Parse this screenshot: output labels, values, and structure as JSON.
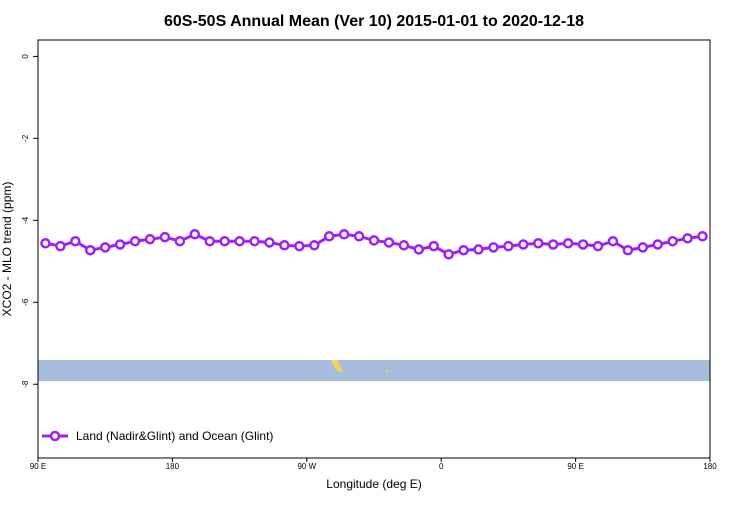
{
  "chart_data": {
    "type": "line",
    "title": "60S-50S Annual Mean (Ver 10)   2015-01-01 to 2020-12-18",
    "x_label": "Longitude (deg E)",
    "y_label": "XCO2 - MLO trend (ppm)",
    "x": [
      95,
      105,
      115,
      125,
      135,
      145,
      155,
      165,
      175,
      185,
      195,
      205,
      215,
      225,
      235,
      245,
      255,
      265,
      275,
      285,
      295,
      305,
      315,
      325,
      335,
      345,
      355,
      365,
      375,
      385,
      395,
      405,
      415,
      425,
      435,
      445,
      455,
      465,
      475,
      485,
      495,
      505,
      515,
      525,
      535
    ],
    "series": [
      {
        "name": "Land (Nadir&Glint) and Ocean (Glint)",
        "color": "#a020f0",
        "values": [
          -4.56,
          -4.63,
          -4.51,
          -4.73,
          -4.66,
          -4.59,
          -4.51,
          -4.46,
          -4.41,
          -4.51,
          -4.34,
          -4.51,
          -4.51,
          -4.51,
          -4.51,
          -4.54,
          -4.61,
          -4.63,
          -4.61,
          -4.39,
          -4.34,
          -4.39,
          -4.49,
          -4.54,
          -4.61,
          -4.71,
          -4.63,
          -4.83,
          -4.73,
          -4.71,
          -4.66,
          -4.63,
          -4.59,
          -4.56,
          -4.59,
          -4.56,
          -4.59,
          -4.63,
          -4.51,
          -4.73,
          -4.66,
          -4.59,
          -4.51,
          -4.44,
          -4.39
        ]
      }
    ],
    "xlim": [
      90,
      540
    ],
    "xticks": [
      {
        "value": 90,
        "label": "90 E"
      },
      180,
      {
        "value": 270,
        "label": "90 W"
      },
      {
        "value": 360,
        "label": "0"
      },
      {
        "value": 450,
        "label": "90 E"
      },
      180
    ],
    "ylim": [
      -9.8,
      0.4
    ],
    "yticks": [
      0,
      -2,
      -4,
      -6,
      -8
    ],
    "legend": "bottom-left"
  }
}
